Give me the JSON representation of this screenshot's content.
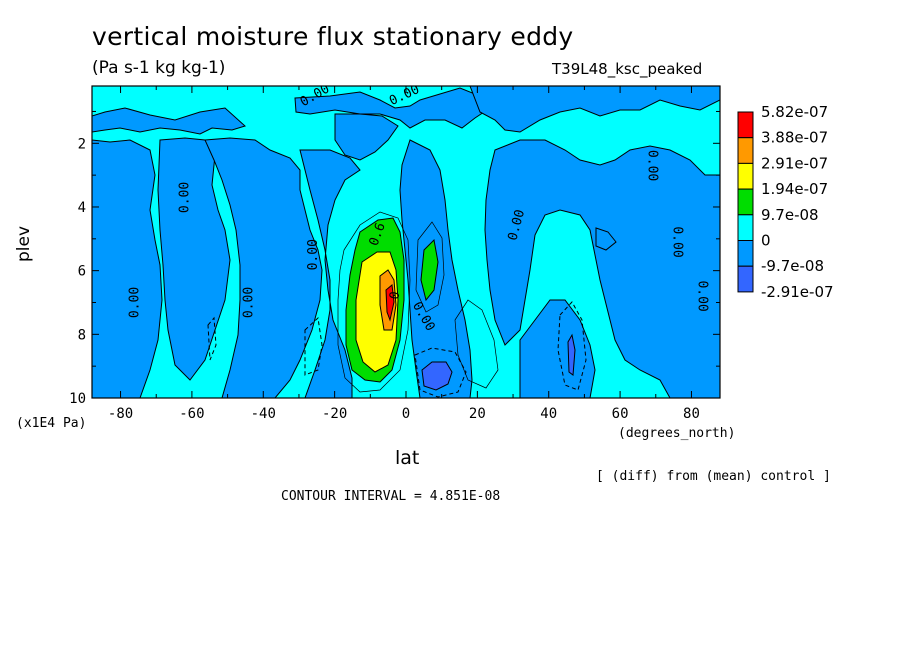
{
  "chart_data": {
    "type": "heatmap",
    "title": "vertical moisture flux stationary eddy",
    "units": "(Pa s-1 kg kg-1)",
    "run_label": "T39L48_ksc_peaked",
    "xlabel": "lat",
    "x_unit": "(degrees_north)",
    "ylabel": "plev",
    "y_unit": "(x1E4 Pa)",
    "xlim": [
      -88,
      88
    ],
    "ylim": [
      10,
      0.2
    ],
    "x_ticks": [
      "-80",
      "-60",
      "-40",
      "-20",
      "0",
      "20",
      "40",
      "60",
      "80"
    ],
    "y_ticks": [
      "2",
      "4",
      "6",
      "8",
      "10"
    ],
    "legend": {
      "placement": "right",
      "labels": [
        "5.82e-07",
        "3.88e-07",
        "2.91e-07",
        "1.94e-07",
        "9.7e-08",
        "0",
        "-9.7e-08",
        "-2.91e-07"
      ],
      "colors": [
        "#ff0000",
        "#ff9900",
        "#ffff00",
        "#00dd00",
        "#00ffff",
        "#0099ff",
        "#3366ff"
      ]
    },
    "contour_labels": [
      {
        "text": "0.00",
        "lat": -25,
        "plev": 0.6,
        "angle": -30
      },
      {
        "text": "0.00",
        "lat": 0,
        "plev": 0.6,
        "angle": -25
      },
      {
        "text": "0.00",
        "lat": -61,
        "plev": 3.7,
        "angle": -90
      },
      {
        "text": "0.00",
        "lat": -75,
        "plev": 7.0,
        "angle": -90
      },
      {
        "text": "0.00",
        "lat": -43,
        "plev": 7.0,
        "angle": -90
      },
      {
        "text": "0.00",
        "lat": -25,
        "plev": 5.5,
        "angle": -90
      },
      {
        "text": "0.00",
        "lat": 32,
        "plev": 4.6,
        "angle": -75
      },
      {
        "text": "0.00",
        "lat": 68,
        "plev": 2.7,
        "angle": 90
      },
      {
        "text": "0.00",
        "lat": 75,
        "plev": 5.1,
        "angle": 90
      },
      {
        "text": "0.00",
        "lat": 82,
        "plev": 6.8,
        "angle": 90
      },
      {
        "text": "0.00",
        "lat": 4,
        "plev": 7.5,
        "angle": 60
      },
      {
        "text": "0.6",
        "lat": -7,
        "plev": 4.9,
        "angle": -70
      },
      {
        "text": "0",
        "lat": -2,
        "plev": 6.8,
        "angle": -80
      }
    ],
    "regions": [
      {
        "level": "-9.7e-08",
        "note": "widespread negative cells"
      },
      {
        "level": "2.91e-07",
        "note": "max near lat -5, plev 6-7"
      },
      {
        "level": "-2.91e-07",
        "note": "min near lat 8, plev 9.2"
      }
    ]
  },
  "annotations": {
    "note": "[ (diff) from (mean) control ]",
    "interval": "CONTOUR INTERVAL = 4.851E-08"
  }
}
